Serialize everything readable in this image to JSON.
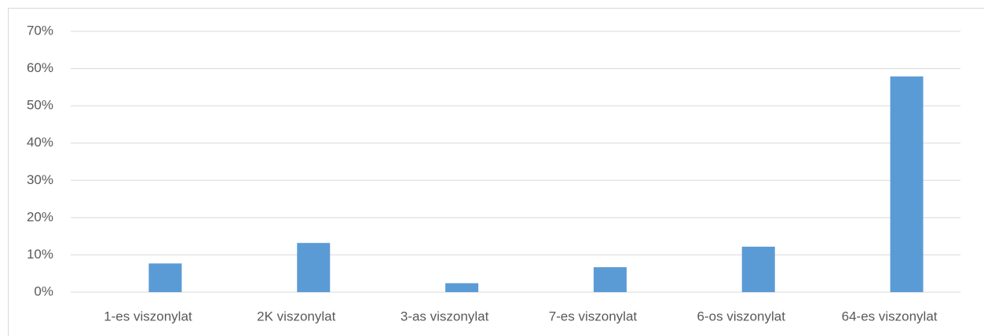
{
  "chart_data": {
    "type": "bar",
    "categories": [
      "1-es viszonylat",
      "2K viszonylat",
      "3-as viszonylat",
      "7-es viszonylat",
      "6-os viszonylat",
      "64-es viszonylat"
    ],
    "values": [
      7.7,
      13.2,
      2.4,
      6.7,
      12.2,
      57.9
    ],
    "color": "#5b9bd5",
    "ylim": [
      0,
      70
    ],
    "yticks": [
      {
        "value": 0,
        "label": "0%"
      },
      {
        "value": 10,
        "label": "10%"
      },
      {
        "value": 20,
        "label": "20%"
      },
      {
        "value": 30,
        "label": "30%"
      },
      {
        "value": 40,
        "label": "40%"
      },
      {
        "value": 50,
        "label": "50%"
      },
      {
        "value": 60,
        "label": "60%"
      },
      {
        "value": 70,
        "label": "70%"
      }
    ],
    "grid": true
  }
}
